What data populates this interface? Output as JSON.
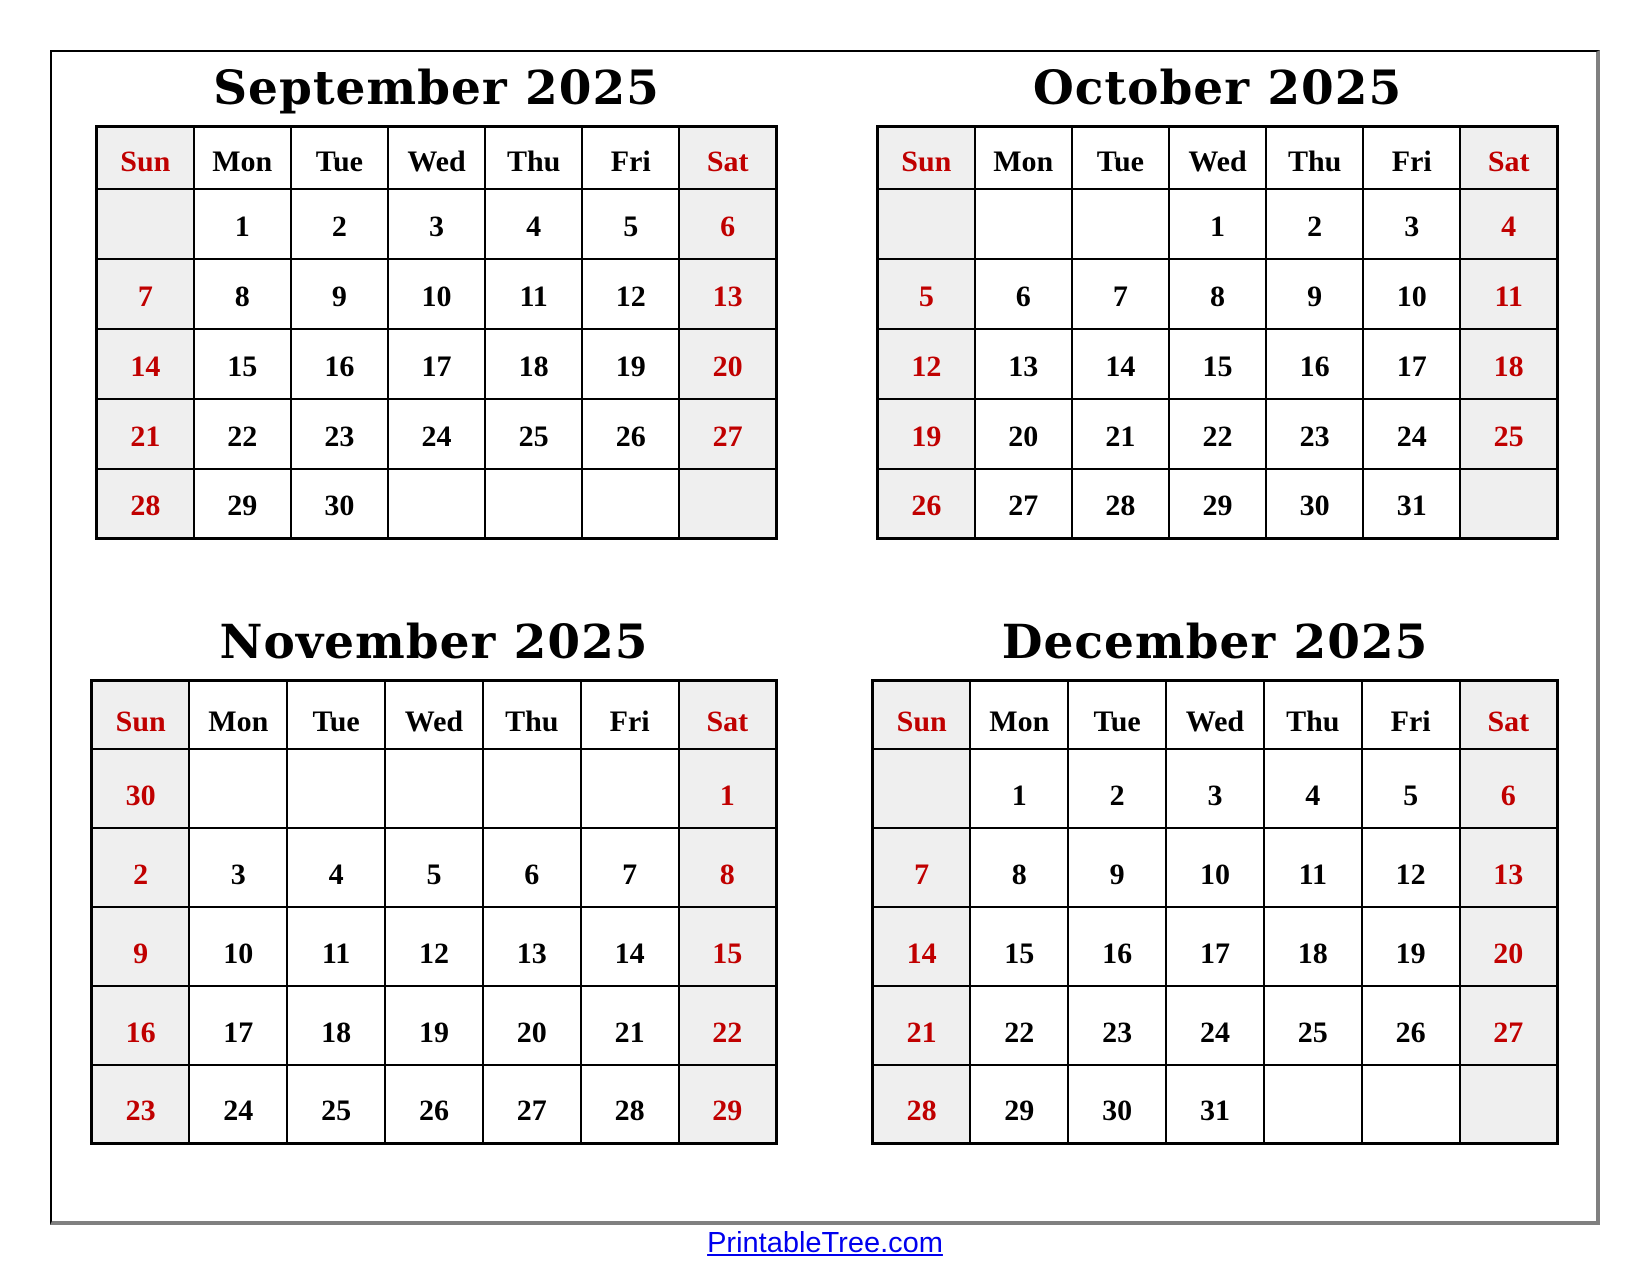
{
  "page": {
    "footer_link": "PrintableTree.com"
  },
  "colors": {
    "weekend_text": "#c00000",
    "weekend_bg": "#efefef",
    "grid_border": "#000000",
    "frame_shadow": "#808080",
    "link_blue": "#0000ee"
  },
  "calendar": {
    "weekdays": [
      "Sun",
      "Mon",
      "Tue",
      "Wed",
      "Thu",
      "Fri",
      "Sat"
    ],
    "weekend_columns": [
      0,
      6
    ],
    "months": [
      {
        "title": "September 2025",
        "rows": [
          [
            "",
            "1",
            "2",
            "3",
            "4",
            "5",
            "6"
          ],
          [
            "7",
            "8",
            "9",
            "10",
            "11",
            "12",
            "13"
          ],
          [
            "14",
            "15",
            "16",
            "17",
            "18",
            "19",
            "20"
          ],
          [
            "21",
            "22",
            "23",
            "24",
            "25",
            "26",
            "27"
          ],
          [
            "28",
            "29",
            "30",
            "",
            "",
            "",
            ""
          ]
        ]
      },
      {
        "title": "October 2025",
        "rows": [
          [
            "",
            "",
            "",
            "1",
            "2",
            "3",
            "4"
          ],
          [
            "5",
            "6",
            "7",
            "8",
            "9",
            "10",
            "11"
          ],
          [
            "12",
            "13",
            "14",
            "15",
            "16",
            "17",
            "18"
          ],
          [
            "19",
            "20",
            "21",
            "22",
            "23",
            "24",
            "25"
          ],
          [
            "26",
            "27",
            "28",
            "29",
            "30",
            "31",
            ""
          ]
        ]
      },
      {
        "title": "November 2025",
        "rows": [
          [
            "30",
            "",
            "",
            "",
            "",
            "",
            "1"
          ],
          [
            "2",
            "3",
            "4",
            "5",
            "6",
            "7",
            "8"
          ],
          [
            "9",
            "10",
            "11",
            "12",
            "13",
            "14",
            "15"
          ],
          [
            "16",
            "17",
            "18",
            "19",
            "20",
            "21",
            "22"
          ],
          [
            "23",
            "24",
            "25",
            "26",
            "27",
            "28",
            "29"
          ]
        ]
      },
      {
        "title": "December 2025",
        "rows": [
          [
            "",
            "1",
            "2",
            "3",
            "4",
            "5",
            "6"
          ],
          [
            "7",
            "8",
            "9",
            "10",
            "11",
            "12",
            "13"
          ],
          [
            "14",
            "15",
            "16",
            "17",
            "18",
            "19",
            "20"
          ],
          [
            "21",
            "22",
            "23",
            "24",
            "25",
            "26",
            "27"
          ],
          [
            "28",
            "29",
            "30",
            "31",
            "",
            "",
            ""
          ]
        ]
      }
    ]
  }
}
